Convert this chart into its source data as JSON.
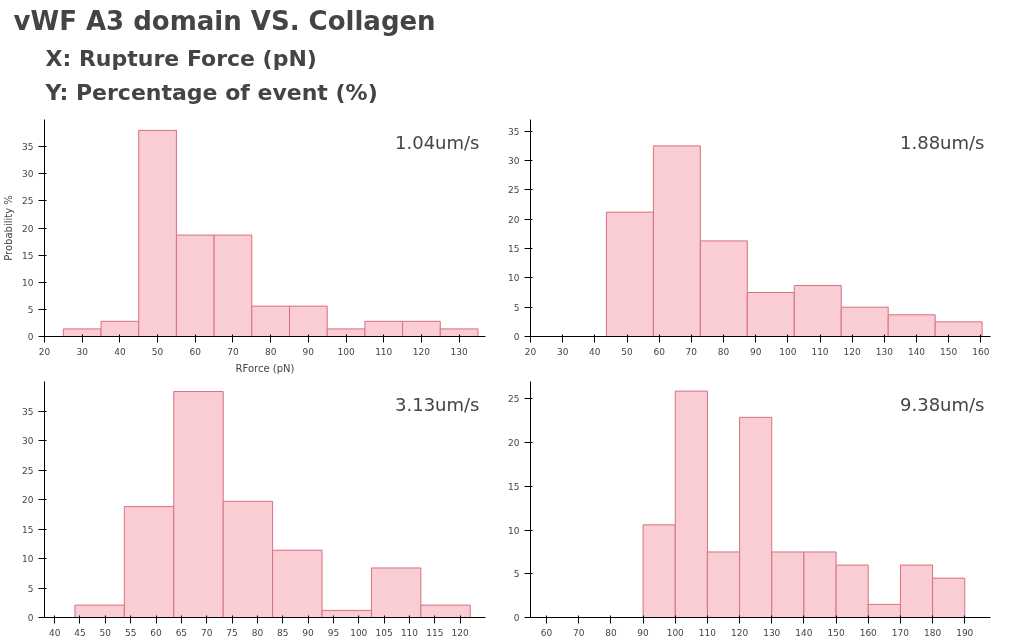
{
  "chart_data": [
    {
      "type": "other",
      "title": "vWF A3 domain VS. Collagen",
      "annotations": [
        "X: Rupture Force (pN)",
        "Y: Percentage of event (%)"
      ]
    },
    {
      "type": "histogram",
      "xlabel": "RForce (pN)",
      "ylabel": "Probability %",
      "annotations": [
        "1.04um/s"
      ],
      "bins": [
        25,
        35,
        45,
        55,
        65,
        75,
        85,
        95,
        105,
        115,
        125,
        135
      ],
      "values": [
        1.4,
        2.8,
        38,
        18.7,
        18.7,
        5.6,
        5.6,
        1.4,
        2.8,
        2.8,
        1.4
      ],
      "color": "#f9cdd3",
      "xlim": [
        20,
        137
      ],
      "ylim": [
        0,
        40
      ],
      "xticks": [
        20,
        30,
        40,
        50,
        60,
        70,
        80,
        90,
        100,
        110,
        120,
        130
      ],
      "yticks": [
        0,
        5,
        10,
        15,
        20,
        25,
        30,
        35
      ],
      "grid": false
    },
    {
      "type": "histogram",
      "annotations": [
        "1.88um/s"
      ],
      "bins": [
        43.6,
        58.2,
        72.8,
        87.4,
        102.0,
        116.6,
        131.2,
        145.8,
        160.4
      ],
      "values": [
        21.2,
        32.5,
        16.3,
        7.5,
        8.7,
        5.0,
        3.7,
        2.5
      ],
      "color": "#f9cdd3",
      "xlim": [
        20,
        163
      ],
      "ylim": [
        0,
        37
      ],
      "xticks": [
        20,
        30,
        40,
        50,
        60,
        70,
        80,
        90,
        100,
        110,
        120,
        130,
        140,
        150,
        160
      ],
      "yticks": [
        0,
        5,
        10,
        15,
        20,
        25,
        30,
        35
      ],
      "grid": false
    },
    {
      "type": "histogram",
      "annotations": [
        "3.13um/s"
      ],
      "bins": [
        44,
        53.75,
        63.5,
        73.25,
        83,
        92.75,
        102.5,
        112.25,
        122
      ],
      "values": [
        2.1,
        18.8,
        38.3,
        19.7,
        11.4,
        1.2,
        8.4,
        2.1
      ],
      "color": "#f9cdd3",
      "xlim": [
        38,
        125
      ],
      "ylim": [
        0,
        40
      ],
      "xticks": [
        40,
        45,
        50,
        55,
        60,
        65,
        70,
        75,
        80,
        85,
        90,
        95,
        100,
        105,
        110,
        115,
        120
      ],
      "yticks": [
        0,
        5,
        10,
        15,
        20,
        25,
        30,
        35
      ],
      "grid": false
    },
    {
      "type": "histogram",
      "annotations": [
        "9.38um/s"
      ],
      "bins": [
        90,
        100,
        110,
        120,
        130,
        140,
        150,
        160,
        170,
        180,
        190
      ],
      "values": [
        10.6,
        25.9,
        7.5,
        22.9,
        7.5,
        7.5,
        6.0,
        1.5,
        6.0,
        4.5
      ],
      "color": "#f9cdd3",
      "xlim": [
        55,
        198
      ],
      "ylim": [
        0,
        27
      ],
      "xticks": [
        60,
        70,
        80,
        90,
        100,
        110,
        120,
        130,
        140,
        150,
        160,
        170,
        180,
        190
      ],
      "yticks": [
        0,
        5,
        10,
        15,
        20,
        25
      ],
      "grid": false
    }
  ]
}
